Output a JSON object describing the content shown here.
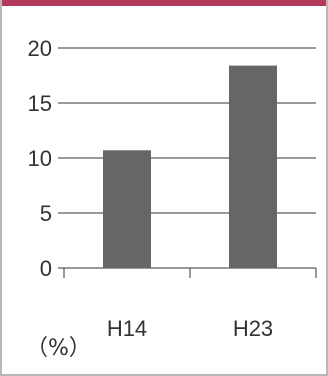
{
  "chart_data": {
    "type": "bar",
    "categories": [
      "H14",
      "H23"
    ],
    "values": [
      10.7,
      18.4
    ],
    "ylim": [
      0,
      20
    ],
    "yticks": [
      "0",
      "5",
      "10",
      "15",
      "20"
    ],
    "grid": true,
    "unit_label": "（%）",
    "colors": {
      "bar": "#666666",
      "grid": "#333333",
      "border": "#b8b8b8",
      "accent": "#b33a5b"
    }
  }
}
